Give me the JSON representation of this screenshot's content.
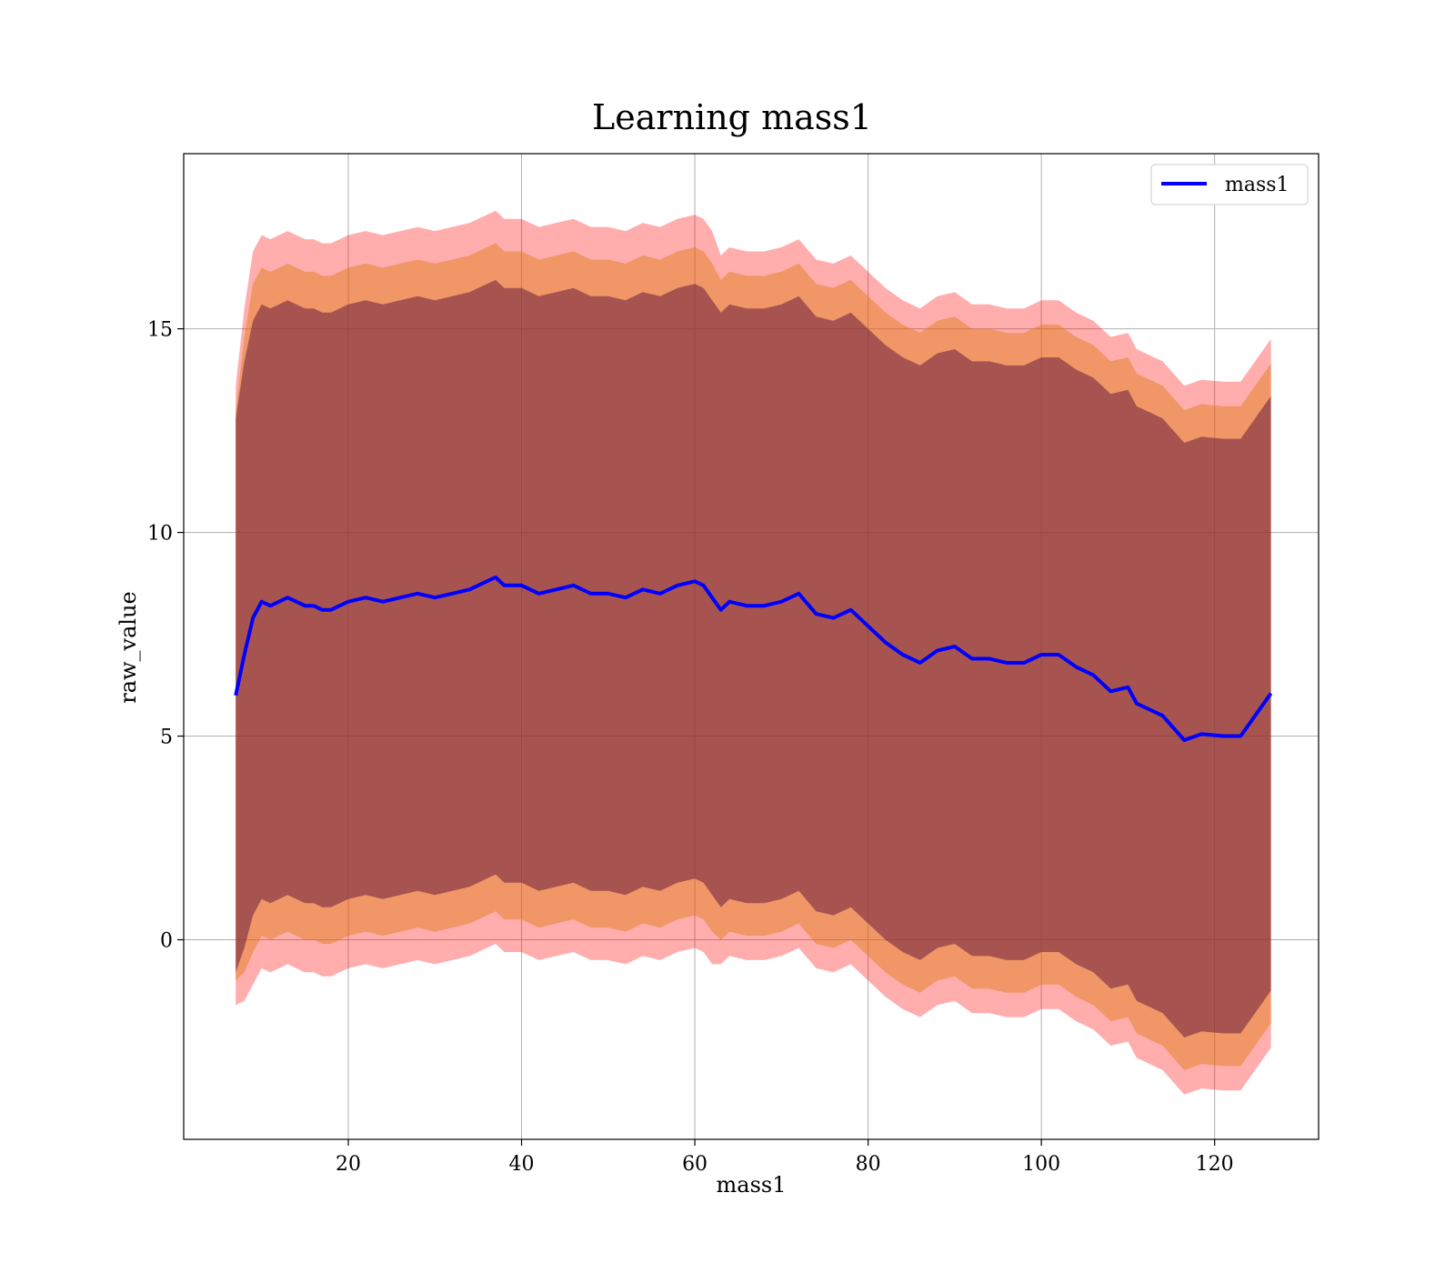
{
  "chart_data": {
    "type": "line",
    "title": "Learning mass1",
    "xlabel": "mass1",
    "ylabel": "raw_value",
    "xlim": [
      1,
      132
    ],
    "ylim": [
      -4.9,
      19.3
    ],
    "x_ticks": [
      20,
      40,
      60,
      80,
      100,
      120
    ],
    "y_ticks": [
      0,
      5,
      10,
      15
    ],
    "grid": true,
    "legend": {
      "placement": "top-right",
      "entries": [
        "mass1"
      ]
    },
    "colors": {
      "line": "#0000ff",
      "band_outer": "#ff0000",
      "band_middle": "#e07b0f",
      "band_inner": "#6a1f3f"
    },
    "series": [
      {
        "name": "mass1",
        "x": [
          7,
          8,
          9,
          10,
          11,
          12,
          13,
          14,
          15,
          16,
          17,
          18,
          19,
          20,
          22,
          24,
          26,
          28,
          30,
          32,
          34,
          35,
          36,
          37,
          38,
          40,
          42,
          44,
          46,
          48,
          50,
          52,
          54,
          56,
          58,
          60,
          61,
          62,
          63,
          64,
          66,
          68,
          70,
          72,
          74,
          76,
          78,
          80,
          82,
          84,
          86,
          88,
          90,
          92,
          94,
          96,
          98,
          100,
          102,
          104,
          106,
          108,
          110,
          111,
          114,
          116.5,
          118.5,
          121,
          123,
          126.5
        ],
        "values": [
          6.0,
          7.0,
          7.9,
          8.3,
          8.2,
          8.3,
          8.4,
          8.3,
          8.2,
          8.2,
          8.1,
          8.1,
          8.2,
          8.3,
          8.4,
          8.3,
          8.4,
          8.5,
          8.4,
          8.5,
          8.6,
          8.7,
          8.8,
          8.9,
          8.7,
          8.7,
          8.5,
          8.6,
          8.7,
          8.5,
          8.5,
          8.4,
          8.6,
          8.5,
          8.7,
          8.8,
          8.7,
          8.4,
          8.1,
          8.3,
          8.2,
          8.2,
          8.3,
          8.5,
          8.0,
          7.9,
          8.1,
          7.7,
          7.3,
          7.0,
          6.8,
          7.1,
          7.2,
          6.9,
          6.9,
          6.8,
          6.8,
          7.0,
          7.0,
          6.7,
          6.5,
          6.1,
          6.2,
          5.8,
          5.5,
          4.9,
          5.05,
          5.0,
          5.0,
          6.05
        ]
      }
    ],
    "bands": [
      {
        "name": "",
        "color": "#ff0000",
        "half_width": [
          7.6,
          8.5,
          9.0,
          9.0,
          9.0,
          9.0,
          9.0,
          9.0,
          9.0,
          9.0,
          9.0,
          9.0,
          9.0,
          9.0,
          9.0,
          9.0,
          9.0,
          9.0,
          9.0,
          9.0,
          9.0,
          9.0,
          9.0,
          9.0,
          9.0,
          9.0,
          9.0,
          9.0,
          9.0,
          9.0,
          9.0,
          9.0,
          9.0,
          9.0,
          9.0,
          9.0,
          9.0,
          9.0,
          8.7,
          8.7,
          8.7,
          8.7,
          8.7,
          8.7,
          8.7,
          8.7,
          8.7,
          8.7,
          8.7,
          8.7,
          8.7,
          8.7,
          8.7,
          8.7,
          8.7,
          8.7,
          8.7,
          8.7,
          8.7,
          8.7,
          8.7,
          8.7,
          8.7,
          8.7,
          8.7,
          8.7,
          8.7,
          8.7,
          8.7,
          8.7
        ]
      },
      {
        "name": "",
        "color": "#e07b0f",
        "half_width": [
          7.0,
          7.8,
          8.2,
          8.2,
          8.2,
          8.2,
          8.2,
          8.2,
          8.2,
          8.2,
          8.2,
          8.2,
          8.2,
          8.2,
          8.2,
          8.2,
          8.2,
          8.2,
          8.2,
          8.2,
          8.2,
          8.2,
          8.2,
          8.2,
          8.2,
          8.2,
          8.2,
          8.2,
          8.2,
          8.2,
          8.2,
          8.2,
          8.2,
          8.2,
          8.2,
          8.2,
          8.2,
          8.2,
          8.1,
          8.1,
          8.1,
          8.1,
          8.1,
          8.1,
          8.1,
          8.1,
          8.1,
          8.1,
          8.1,
          8.1,
          8.1,
          8.1,
          8.1,
          8.1,
          8.1,
          8.1,
          8.1,
          8.1,
          8.1,
          8.1,
          8.1,
          8.1,
          8.1,
          8.1,
          8.1,
          8.1,
          8.1,
          8.1,
          8.1,
          8.1
        ]
      },
      {
        "name": "",
        "color": "#6a1f3f",
        "half_width": [
          6.8,
          7.2,
          7.3,
          7.3,
          7.3,
          7.3,
          7.3,
          7.3,
          7.3,
          7.3,
          7.3,
          7.3,
          7.3,
          7.3,
          7.3,
          7.3,
          7.3,
          7.3,
          7.3,
          7.3,
          7.3,
          7.3,
          7.3,
          7.3,
          7.3,
          7.3,
          7.3,
          7.3,
          7.3,
          7.3,
          7.3,
          7.3,
          7.3,
          7.3,
          7.3,
          7.3,
          7.3,
          7.3,
          7.3,
          7.3,
          7.3,
          7.3,
          7.3,
          7.3,
          7.3,
          7.3,
          7.3,
          7.3,
          7.3,
          7.3,
          7.3,
          7.3,
          7.3,
          7.3,
          7.3,
          7.3,
          7.3,
          7.3,
          7.3,
          7.3,
          7.3,
          7.3,
          7.3,
          7.3,
          7.3,
          7.3,
          7.3,
          7.3,
          7.3,
          7.3
        ]
      }
    ]
  }
}
